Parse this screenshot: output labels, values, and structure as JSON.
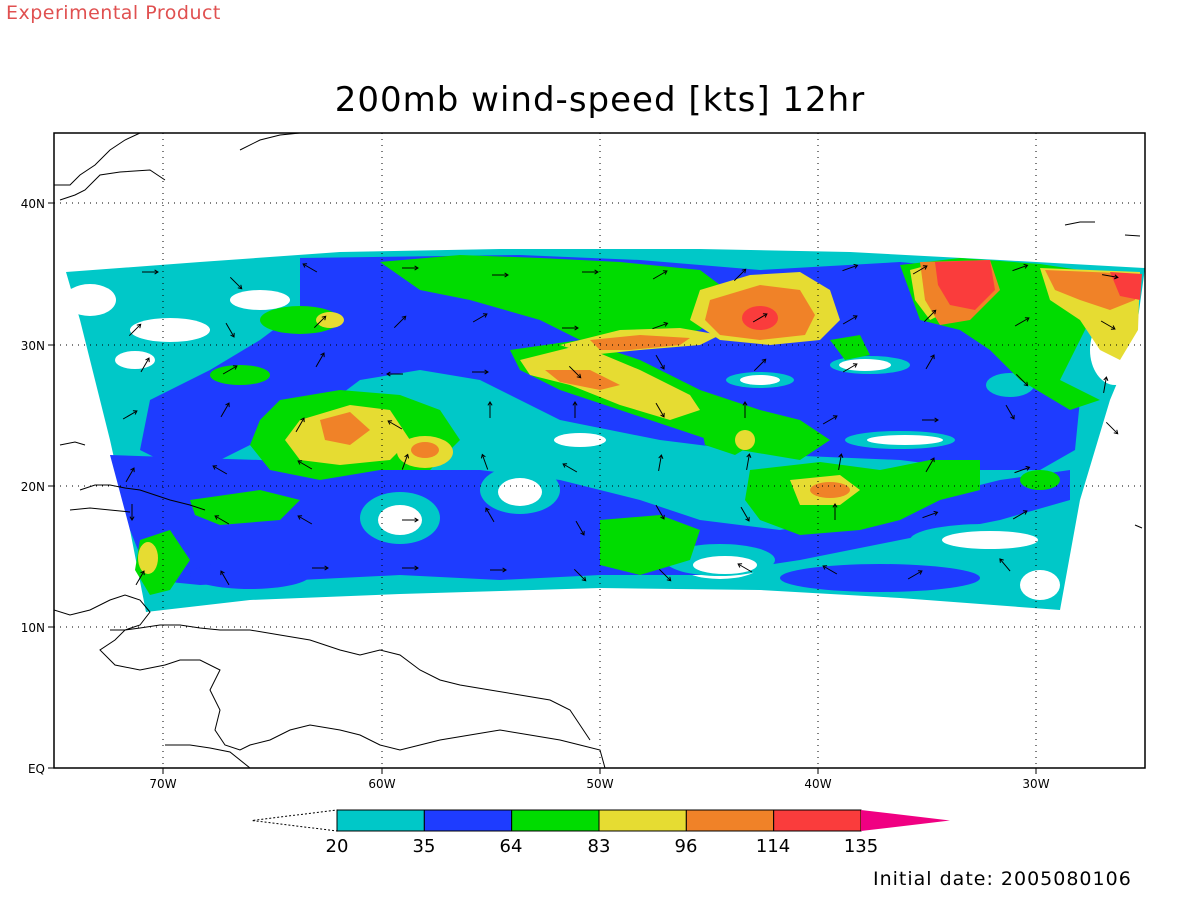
{
  "header": {
    "experimental": "Experimental Product"
  },
  "title": "200mb wind-speed [kts] 12hr",
  "footer": {
    "initial_date": "Initial date: 2005080106"
  },
  "axes": {
    "lon_labels": [
      "70W",
      "60W",
      "50W",
      "40W",
      "30W"
    ],
    "lat_labels": [
      "40N",
      "30N",
      "20N",
      "10N",
      "EQ"
    ]
  },
  "colorbar": {
    "levels": [
      "20",
      "35",
      "64",
      "83",
      "96",
      "114",
      "135"
    ],
    "colors": [
      "#00c8c8",
      "#1e3cff",
      "#00dc00",
      "#e6dc32",
      "#f08228",
      "#fa3c3c",
      "#f00082"
    ]
  },
  "colors": {
    "cyan": "#00c8c8",
    "blue": "#1e3cff",
    "green": "#00dc00",
    "yellow": "#e6dc32",
    "orange": "#f08228",
    "red": "#fa3c3c"
  }
}
